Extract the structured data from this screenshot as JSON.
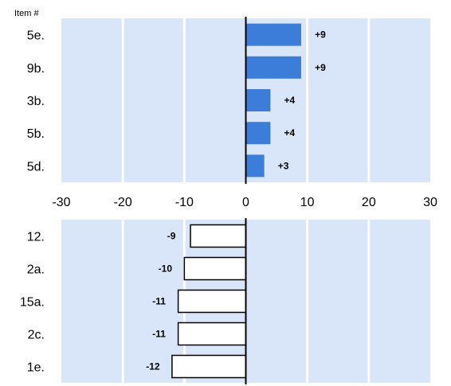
{
  "chart_data": [
    {
      "type": "bar",
      "orientation": "horizontal",
      "ylabel": "Item #",
      "categories": [
        "5e.",
        "9b.",
        "3b.",
        "5b.",
        "5d."
      ],
      "values": [
        9,
        9,
        4,
        4,
        3
      ],
      "data_labels": [
        "+9",
        "+9",
        "+4",
        "+4",
        "+3"
      ],
      "xlim": [
        -30,
        30
      ],
      "x_ticks": [
        "-30",
        "-20",
        "-10",
        "0",
        "10",
        "20",
        "30"
      ],
      "bar_color": "#3c7dd9",
      "bar_border": "none"
    },
    {
      "type": "bar",
      "orientation": "horizontal",
      "categories": [
        "12.",
        "2a.",
        "15a.",
        "2c.",
        "1e."
      ],
      "values": [
        -9,
        -10,
        -11,
        -11,
        -12
      ],
      "data_labels": [
        "-9",
        "-10",
        "-11",
        "-11",
        "-12"
      ],
      "xlim": [
        -30,
        30
      ],
      "bar_color": "#ffffff",
      "bar_border": "#000000"
    }
  ],
  "style": {
    "band_color": "#d9e5f8",
    "gridline_color": "#ffffff",
    "zero_line_color": "#000000"
  }
}
